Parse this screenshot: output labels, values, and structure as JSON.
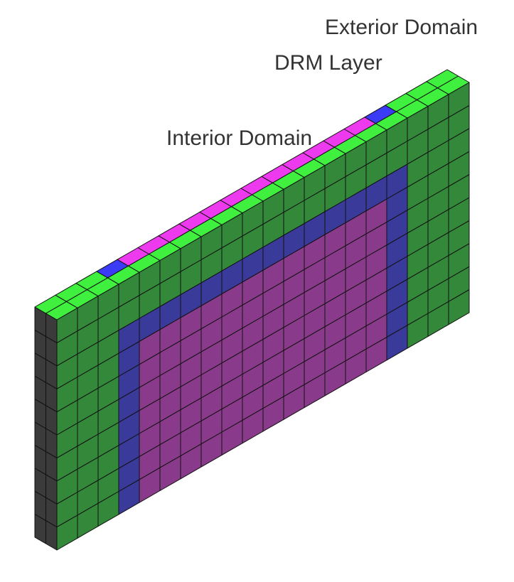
{
  "labels": {
    "exterior": "Exterior Domain",
    "drm": "DRM Layer",
    "interior": "Interior Domain"
  },
  "mesh": {
    "columns": 20,
    "rows": 10,
    "depth_layers": 2,
    "interior_columns": [
      4,
      16
    ],
    "interior_rows": [
      0,
      7
    ],
    "drm_columns": [
      3,
      17
    ],
    "drm_rows": [
      0,
      8
    ]
  },
  "colors": {
    "exterior_face": "#33883a",
    "exterior_top": "#3ff03f",
    "drm_face": "#3a3a9a",
    "drm_top": "#3b3bf5",
    "interior_face": "#8a3a8a",
    "interior_top": "#ee3aee",
    "side_face": "#3b3b3b",
    "edge": "#111111"
  }
}
